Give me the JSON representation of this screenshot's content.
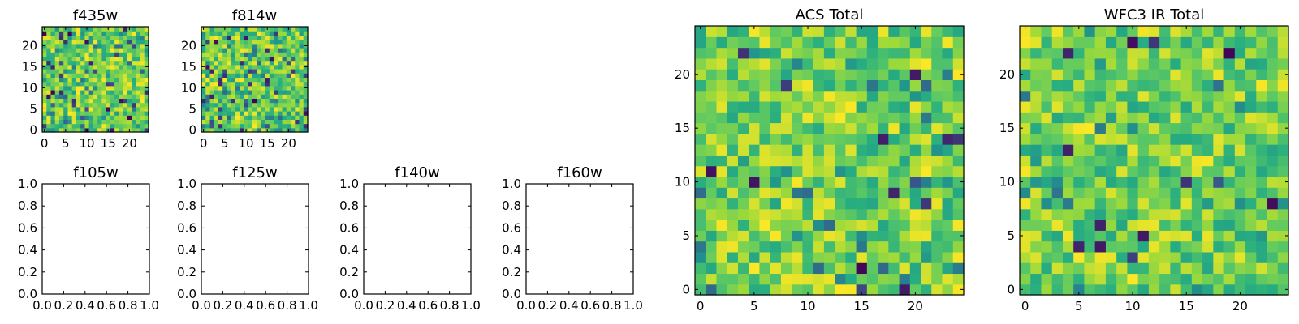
{
  "chart_data": [
    {
      "type": "heatmap",
      "title": "f435w",
      "grid_size": 25,
      "xlim": [
        -0.5,
        24.5
      ],
      "ylim": [
        -0.5,
        24.5
      ],
      "xticks": [
        0,
        5,
        10,
        15,
        20
      ],
      "yticks": [
        0,
        5,
        10,
        15,
        20
      ],
      "seed": 11,
      "dark_fraction": 0.05
    },
    {
      "type": "heatmap",
      "title": "f814w",
      "grid_size": 25,
      "xlim": [
        -0.5,
        24.5
      ],
      "ylim": [
        -0.5,
        24.5
      ],
      "xticks": [
        0,
        5,
        10,
        15,
        20
      ],
      "yticks": [
        0,
        5,
        10,
        15,
        20
      ],
      "seed": 23,
      "dark_fraction": 0.05
    },
    {
      "type": "heatmap",
      "title": "f105w",
      "empty": true,
      "xlim": [
        0,
        1
      ],
      "ylim": [
        0,
        1
      ],
      "xticks": [
        "0.0",
        "0.2",
        "0.4",
        "0.6",
        "0.8",
        "1.0"
      ],
      "yticks": [
        "0.0",
        "0.2",
        "0.4",
        "0.6",
        "0.8",
        "1.0"
      ]
    },
    {
      "type": "heatmap",
      "title": "f125w",
      "empty": true,
      "xlim": [
        0,
        1
      ],
      "ylim": [
        0,
        1
      ],
      "xticks": [
        "0.0",
        "0.2",
        "0.4",
        "0.6",
        "0.8",
        "1.0"
      ],
      "yticks": [
        "0.0",
        "0.2",
        "0.4",
        "0.6",
        "0.8",
        "1.0"
      ]
    },
    {
      "type": "heatmap",
      "title": "f140w",
      "empty": true,
      "xlim": [
        0,
        1
      ],
      "ylim": [
        0,
        1
      ],
      "xticks": [
        "0.0",
        "0.2",
        "0.4",
        "0.6",
        "0.8",
        "1.0"
      ],
      "yticks": [
        "0.0",
        "0.2",
        "0.4",
        "0.6",
        "0.8",
        "1.0"
      ]
    },
    {
      "type": "heatmap",
      "title": "f160w",
      "empty": true,
      "xlim": [
        0,
        1
      ],
      "ylim": [
        0,
        1
      ],
      "xticks": [
        "0.0",
        "0.2",
        "0.4",
        "0.6",
        "0.8",
        "1.0"
      ],
      "yticks": [
        "0.0",
        "0.2",
        "0.4",
        "0.6",
        "0.8",
        "1.0"
      ]
    },
    {
      "type": "heatmap",
      "title": "ACS Total",
      "grid_size": 25,
      "xlim": [
        -0.5,
        24.5
      ],
      "ylim": [
        -0.5,
        24.5
      ],
      "xticks": [
        0,
        5,
        10,
        15,
        20
      ],
      "yticks": [
        0,
        5,
        10,
        15,
        20
      ],
      "seed": 37,
      "dark_fraction": 0.025
    },
    {
      "type": "heatmap",
      "title": "WFC3 IR Total",
      "grid_size": 25,
      "xlim": [
        -0.5,
        24.5
      ],
      "ylim": [
        -0.5,
        24.5
      ],
      "xticks": [
        0,
        5,
        10,
        15,
        20
      ],
      "yticks": [
        0,
        5,
        10,
        15,
        20
      ],
      "seed": 53,
      "dark_fraction": 0.025
    }
  ],
  "colormap": [
    "#440154",
    "#3b528b",
    "#21918c",
    "#27ad81",
    "#5ec962",
    "#9bd93c",
    "#fde725"
  ]
}
